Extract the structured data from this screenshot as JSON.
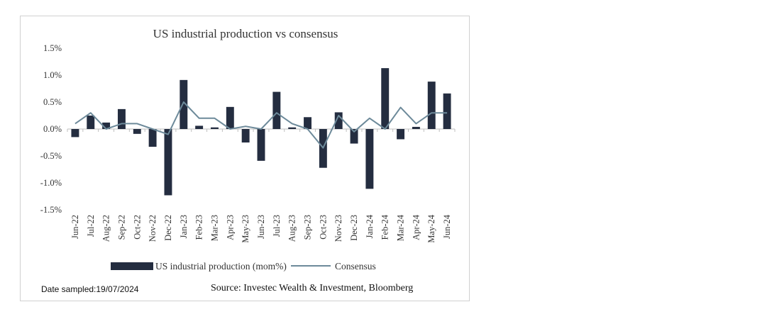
{
  "chart_data": {
    "type": "bar",
    "title": "US industrial production vs consensus",
    "xlabel": "",
    "ylabel": "",
    "ylim": [
      -1.5,
      1.5
    ],
    "yticks": [
      "1.5%",
      "1.0%",
      "0.5%",
      "0.0%",
      "-0.5%",
      "-1.0%",
      "-1.5%"
    ],
    "ytick_values": [
      1.5,
      1.0,
      0.5,
      0.0,
      -0.5,
      -1.0,
      -1.5
    ],
    "categories": [
      "Jun-22",
      "Jul-22",
      "Aug-22",
      "Sep-22",
      "Oct-22",
      "Nov-22",
      "Dec-22",
      "Jan-23",
      "Feb-23",
      "Mar-23",
      "Apr-23",
      "May-23",
      "Jun-23",
      "Jul-23",
      "Aug-23",
      "Sep-23",
      "Oct-23",
      "Nov-23",
      "Dec-23",
      "Jan-24",
      "Feb-24",
      "Mar-24",
      "Apr-24",
      "May-24",
      "Jun-24"
    ],
    "series": [
      {
        "name": "US industrial production (mom%)",
        "kind": "bar",
        "color": "#242d40",
        "values": [
          -0.15,
          0.25,
          0.12,
          0.37,
          -0.09,
          -0.33,
          -1.23,
          0.91,
          0.06,
          0.03,
          0.41,
          -0.25,
          -0.59,
          0.69,
          0.03,
          0.22,
          -0.72,
          0.31,
          -0.27,
          -1.11,
          1.13,
          -0.19,
          0.04,
          0.88,
          0.66
        ]
      },
      {
        "name": "Consensus",
        "kind": "line",
        "color": "#6d8a9a",
        "values": [
          0.1,
          0.3,
          0.0,
          0.1,
          0.1,
          0.0,
          -0.1,
          0.5,
          0.2,
          0.2,
          0.0,
          0.05,
          0.0,
          0.3,
          0.1,
          0.0,
          -0.35,
          0.25,
          -0.05,
          0.2,
          0.0,
          0.4,
          0.1,
          0.3,
          0.3
        ]
      }
    ],
    "legend_position": "bottom"
  },
  "footer": {
    "date_sampled": "Date sampled:19/07/2024",
    "source": "Source: Investec Wealth & Investment, Bloomberg"
  }
}
